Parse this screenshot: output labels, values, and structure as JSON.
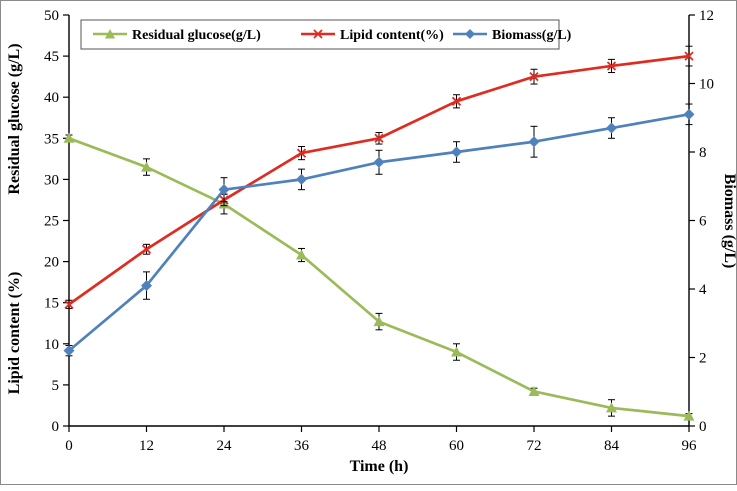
{
  "figure": {
    "background": "#ffffff",
    "axis_color": "#000000"
  },
  "chart_data": {
    "type": "line",
    "title": "",
    "xlabel": "Time (h)",
    "x": [
      0,
      12,
      24,
      36,
      48,
      60,
      72,
      84,
      96
    ],
    "x_tick_labels": [
      "0",
      "12",
      "24",
      "36",
      "48",
      "60",
      "72",
      "84",
      "96"
    ],
    "left_axis": {
      "label_top": "Residual glucose (g/L)",
      "label_bottom": "Lipid content (%)",
      "min": 0,
      "max": 50,
      "step": 5
    },
    "right_axis": {
      "label": "Biomass (g/L)",
      "min": 0,
      "max": 12,
      "step": 2
    },
    "grid": false,
    "legend_position": "top-inside-border-box",
    "series": [
      {
        "name": "Residual glucose(g/L)",
        "axis": "left",
        "color": "#9BBB59",
        "marker": "triangle",
        "values": [
          35,
          31.5,
          27,
          20.8,
          12.7,
          9,
          4.2,
          2.2,
          1.2
        ],
        "errors": [
          0.4,
          1.0,
          1.2,
          0.8,
          1.0,
          1.0,
          0.4,
          1.0,
          0.3
        ]
      },
      {
        "name": "Lipid content(%)",
        "axis": "left",
        "color": "#E02B20",
        "marker": "x",
        "values": [
          14.8,
          21.5,
          27.5,
          33.2,
          35,
          39.5,
          42.5,
          43.8,
          45
        ],
        "errors": [
          0.5,
          0.6,
          0.7,
          0.8,
          0.7,
          0.8,
          0.9,
          0.8,
          1.2
        ]
      },
      {
        "name": "Biomass(g/L)",
        "axis": "right",
        "color": "#4F81BD",
        "marker": "diamond",
        "values": [
          2.2,
          4.1,
          6.9,
          7.2,
          7.7,
          8.0,
          8.3,
          8.7,
          9.1
        ],
        "errors": [
          0.15,
          0.4,
          0.35,
          0.3,
          0.35,
          0.3,
          0.45,
          0.3,
          0.3
        ]
      }
    ]
  }
}
